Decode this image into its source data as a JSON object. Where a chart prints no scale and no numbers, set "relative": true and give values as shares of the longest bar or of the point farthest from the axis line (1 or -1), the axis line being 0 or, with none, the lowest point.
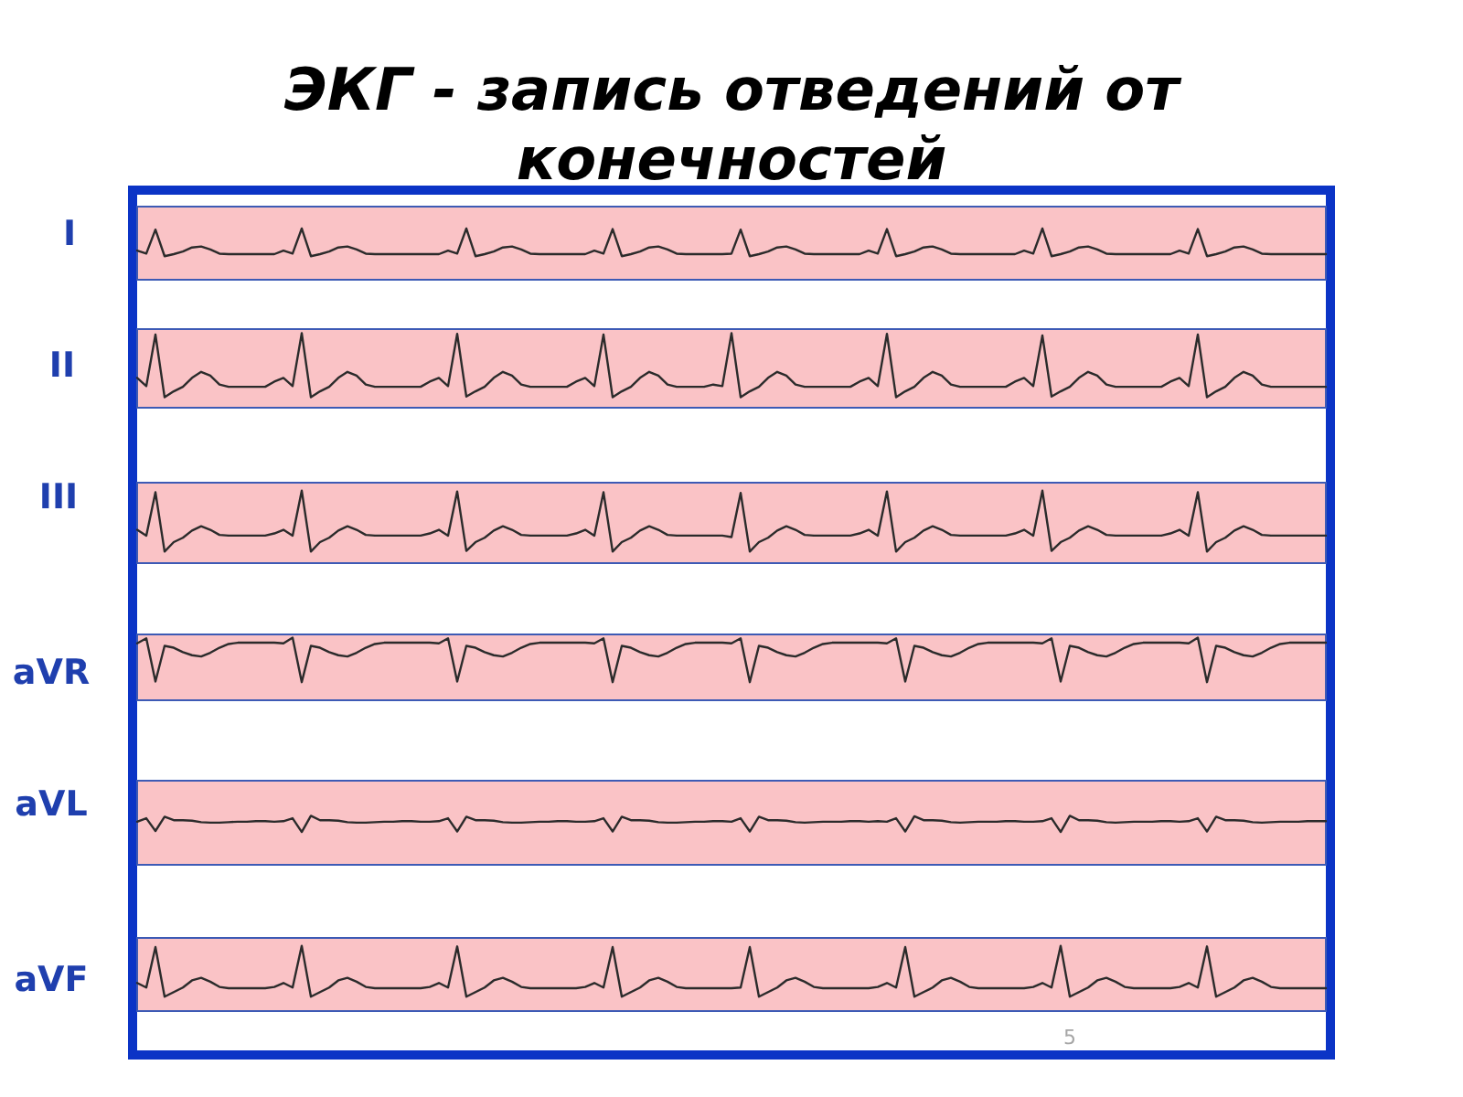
{
  "chart_data": [
    {
      "type": "line",
      "relative": true,
      "title": "ЭКГ - запись отведений от конечностей",
      "ylabel": "I",
      "color": "#2b2b2b",
      "categories": [
        null,
        null,
        null,
        null,
        null,
        null,
        null,
        null,
        null,
        null,
        null,
        null,
        null,
        null,
        null,
        null,
        null,
        null,
        null,
        null,
        null,
        null,
        null,
        null,
        null,
        null,
        null,
        null,
        null,
        null,
        null,
        null,
        null,
        null,
        null,
        null,
        null,
        null,
        null,
        null,
        null,
        null,
        null,
        null,
        null,
        null,
        null,
        null,
        null,
        null,
        null,
        null,
        null,
        null,
        null,
        null,
        null,
        null,
        null,
        null,
        null,
        null,
        null,
        null,
        null,
        null,
        null,
        null,
        null,
        null,
        null,
        null,
        null,
        null,
        null,
        null,
        null,
        null,
        null,
        null,
        null,
        null,
        null,
        null,
        null,
        null,
        null,
        null,
        null,
        null,
        null,
        null,
        null,
        null,
        null,
        null,
        null,
        null,
        null,
        null,
        null,
        null,
        null,
        null,
        null,
        null,
        null,
        null,
        null,
        null,
        null,
        null,
        null,
        null,
        null,
        null,
        null,
        null,
        null,
        null,
        null,
        null,
        null,
        null,
        null,
        null,
        null,
        null,
        null,
        null,
        null
      ],
      "values": [
        0.57,
        0.51,
        0.98,
        0.46,
        0.5,
        0.55,
        0.63,
        0.65,
        0.59,
        0.51,
        0.5,
        0.5,
        0.5,
        0.5,
        0.5,
        0.5,
        0.57,
        0.51,
        1,
        0.46,
        0.5,
        0.55,
        0.63,
        0.65,
        0.59,
        0.51,
        0.5,
        0.5,
        0.5,
        0.5,
        0.5,
        0.5,
        0.5,
        0.5,
        0.57,
        0.51,
        1,
        0.46,
        0.5,
        0.55,
        0.63,
        0.65,
        0.59,
        0.51,
        0.5,
        0.5,
        0.5,
        0.5,
        0.5,
        0.5,
        0.57,
        0.51,
        0.99,
        0.46,
        0.5,
        0.55,
        0.63,
        0.65,
        0.59,
        0.51,
        0.5,
        0.5,
        0.5,
        0.5,
        0.5,
        0.51,
        0.98,
        0.46,
        0.5,
        0.55,
        0.63,
        0.65,
        0.59,
        0.51,
        0.5,
        0.5,
        0.5,
        0.5,
        0.5,
        0.5,
        0.57,
        0.51,
        0.99,
        0.46,
        0.5,
        0.55,
        0.63,
        0.65,
        0.59,
        0.51,
        0.5,
        0.5,
        0.5,
        0.5,
        0.5,
        0.5,
        0.5,
        0.57,
        0.51,
        1,
        0.46,
        0.5,
        0.55,
        0.63,
        0.65,
        0.59,
        0.51,
        0.5,
        0.5,
        0.5,
        0.5,
        0.5,
        0.5,
        0.5,
        0.57,
        0.51,
        0.99,
        0.46,
        0.5,
        0.55,
        0.63,
        0.65,
        0.59,
        0.51,
        0.5,
        0.5,
        0.5,
        0.5,
        0.5,
        0.5,
        0.5
      ]
    },
    {
      "type": "line",
      "relative": true,
      "ylabel": "II",
      "color": "#2b2b2b",
      "categories": [
        null,
        null,
        null,
        null,
        null,
        null,
        null,
        null,
        null,
        null,
        null,
        null,
        null,
        null,
        null,
        null,
        null,
        null,
        null,
        null,
        null,
        null,
        null,
        null,
        null,
        null,
        null,
        null,
        null,
        null,
        null,
        null,
        null,
        null,
        null,
        null,
        null,
        null,
        null,
        null,
        null,
        null,
        null,
        null,
        null,
        null,
        null,
        null,
        null,
        null,
        null,
        null,
        null,
        null,
        null,
        null,
        null,
        null,
        null,
        null,
        null,
        null,
        null,
        null,
        null,
        null,
        null,
        null,
        null,
        null,
        null,
        null,
        null,
        null,
        null,
        null,
        null,
        null,
        null,
        null,
        null,
        null,
        null,
        null,
        null,
        null,
        null,
        null,
        null,
        null,
        null,
        null,
        null,
        null,
        null,
        null,
        null,
        null,
        null,
        null,
        null,
        null,
        null,
        null,
        null,
        null,
        null,
        null,
        null,
        null,
        null,
        null,
        null,
        null,
        null,
        null,
        null,
        null,
        null,
        null,
        null,
        null,
        null,
        null,
        null,
        null,
        null,
        null,
        null,
        null,
        null
      ],
      "values": [
        0.4,
        0.29,
        0.98,
        0.14,
        0.22,
        0.28,
        0.4,
        0.48,
        0.43,
        0.31,
        0.28,
        0.28,
        0.28,
        0.28,
        0.28,
        0.35,
        0.4,
        0.29,
        1,
        0.14,
        0.22,
        0.28,
        0.4,
        0.48,
        0.43,
        0.31,
        0.28,
        0.28,
        0.28,
        0.28,
        0.28,
        0.28,
        0.35,
        0.4,
        0.29,
        0.99,
        0.15,
        0.22,
        0.28,
        0.4,
        0.48,
        0.43,
        0.31,
        0.28,
        0.28,
        0.28,
        0.28,
        0.28,
        0.35,
        0.4,
        0.29,
        0.98,
        0.14,
        0.22,
        0.28,
        0.4,
        0.48,
        0.43,
        0.31,
        0.28,
        0.28,
        0.28,
        0.28,
        0.31,
        0.29,
        1,
        0.14,
        0.22,
        0.28,
        0.4,
        0.48,
        0.43,
        0.31,
        0.28,
        0.28,
        0.28,
        0.28,
        0.28,
        0.28,
        0.35,
        0.4,
        0.29,
        0.99,
        0.14,
        0.22,
        0.28,
        0.4,
        0.48,
        0.43,
        0.31,
        0.28,
        0.28,
        0.28,
        0.28,
        0.28,
        0.28,
        0.35,
        0.4,
        0.29,
        0.97,
        0.15,
        0.22,
        0.28,
        0.4,
        0.48,
        0.43,
        0.31,
        0.28,
        0.28,
        0.28,
        0.28,
        0.28,
        0.28,
        0.35,
        0.4,
        0.29,
        0.98,
        0.14,
        0.22,
        0.28,
        0.4,
        0.48,
        0.43,
        0.31,
        0.28,
        0.28,
        0.28,
        0.28,
        0.28,
        0.28,
        0.28
      ]
    },
    {
      "type": "line",
      "relative": true,
      "ylabel": "III",
      "color": "#2b2b2b",
      "categories": [
        null,
        null,
        null,
        null,
        null,
        null,
        null,
        null,
        null,
        null,
        null,
        null,
        null,
        null,
        null,
        null,
        null,
        null,
        null,
        null,
        null,
        null,
        null,
        null,
        null,
        null,
        null,
        null,
        null,
        null,
        null,
        null,
        null,
        null,
        null,
        null,
        null,
        null,
        null,
        null,
        null,
        null,
        null,
        null,
        null,
        null,
        null,
        null,
        null,
        null,
        null,
        null,
        null,
        null,
        null,
        null,
        null,
        null,
        null,
        null,
        null,
        null,
        null,
        null,
        null,
        null,
        null,
        null,
        null,
        null,
        null,
        null,
        null,
        null,
        null,
        null,
        null,
        null,
        null,
        null,
        null,
        null,
        null,
        null,
        null,
        null,
        null,
        null,
        null,
        null,
        null,
        null,
        null,
        null,
        null,
        null,
        null,
        null,
        null,
        null,
        null,
        null,
        null,
        null,
        null,
        null,
        null,
        null,
        null,
        null,
        null,
        null,
        null,
        null,
        null,
        null,
        null,
        null,
        null,
        null,
        null,
        null,
        null,
        null,
        null,
        null,
        null,
        null,
        null,
        null,
        null
      ],
      "values": [
        0.46,
        0.38,
        0.98,
        0.16,
        0.29,
        0.35,
        0.45,
        0.51,
        0.46,
        0.39,
        0.38,
        0.38,
        0.38,
        0.38,
        0.38,
        0.41,
        0.46,
        0.38,
        1,
        0.16,
        0.29,
        0.35,
        0.45,
        0.51,
        0.46,
        0.39,
        0.38,
        0.38,
        0.38,
        0.38,
        0.38,
        0.38,
        0.41,
        0.46,
        0.38,
        0.99,
        0.17,
        0.29,
        0.35,
        0.45,
        0.51,
        0.46,
        0.39,
        0.38,
        0.38,
        0.38,
        0.38,
        0.38,
        0.41,
        0.46,
        0.38,
        0.98,
        0.16,
        0.29,
        0.35,
        0.45,
        0.51,
        0.46,
        0.39,
        0.38,
        0.38,
        0.38,
        0.38,
        0.38,
        0.38,
        0.36,
        0.97,
        0.16,
        0.29,
        0.35,
        0.45,
        0.51,
        0.46,
        0.39,
        0.38,
        0.38,
        0.38,
        0.38,
        0.38,
        0.41,
        0.46,
        0.38,
        0.99,
        0.16,
        0.29,
        0.35,
        0.45,
        0.51,
        0.46,
        0.39,
        0.38,
        0.38,
        0.38,
        0.38,
        0.38,
        0.38,
        0.41,
        0.46,
        0.38,
        1,
        0.17,
        0.29,
        0.35,
        0.45,
        0.51,
        0.46,
        0.39,
        0.38,
        0.38,
        0.38,
        0.38,
        0.38,
        0.38,
        0.41,
        0.46,
        0.38,
        0.98,
        0.16,
        0.29,
        0.35,
        0.45,
        0.51,
        0.46,
        0.39,
        0.38,
        0.38,
        0.38,
        0.38,
        0.38,
        0.38,
        0.38
      ]
    },
    {
      "type": "line",
      "relative": true,
      "ylabel": "aVR",
      "color": "#2b2b2b",
      "categories": [
        null,
        null,
        null,
        null,
        null,
        null,
        null,
        null,
        null,
        null,
        null,
        null,
        null,
        null,
        null,
        null,
        null,
        null,
        null,
        null,
        null,
        null,
        null,
        null,
        null,
        null,
        null,
        null,
        null,
        null,
        null,
        null,
        null,
        null,
        null,
        null,
        null,
        null,
        null,
        null,
        null,
        null,
        null,
        null,
        null,
        null,
        null,
        null,
        null,
        null,
        null,
        null,
        null,
        null,
        null,
        null,
        null,
        null,
        null,
        null,
        null,
        null,
        null,
        null,
        null,
        null,
        null,
        null,
        null,
        null,
        null,
        null,
        null,
        null,
        null,
        null,
        null,
        null,
        null,
        null,
        null,
        null,
        null,
        null,
        null,
        null,
        null,
        null,
        null,
        null,
        null,
        null,
        null,
        null,
        null,
        null,
        null,
        null,
        null,
        null,
        null,
        null,
        null,
        null,
        null,
        null,
        null,
        null,
        null,
        null,
        null,
        null,
        null,
        null,
        null,
        null,
        null,
        null,
        null,
        null,
        null,
        null,
        null,
        null,
        null,
        null,
        null,
        null,
        null,
        null,
        null
      ],
      "values": [
        0.91,
        0.99,
        0.3,
        0.87,
        0.84,
        0.77,
        0.72,
        0.7,
        0.76,
        0.84,
        0.9,
        0.92,
        0.92,
        0.92,
        0.92,
        0.92,
        0.91,
        1,
        0.29,
        0.87,
        0.84,
        0.77,
        0.72,
        0.7,
        0.76,
        0.84,
        0.9,
        0.92,
        0.92,
        0.92,
        0.92,
        0.92,
        0.92,
        0.91,
        0.99,
        0.3,
        0.87,
        0.84,
        0.77,
        0.72,
        0.7,
        0.76,
        0.84,
        0.9,
        0.92,
        0.92,
        0.92,
        0.92,
        0.92,
        0.92,
        0.91,
        0.99,
        0.29,
        0.87,
        0.84,
        0.77,
        0.72,
        0.7,
        0.76,
        0.84,
        0.9,
        0.92,
        0.92,
        0.92,
        0.92,
        0.91,
        0.99,
        0.29,
        0.87,
        0.84,
        0.77,
        0.72,
        0.7,
        0.76,
        0.84,
        0.9,
        0.92,
        0.92,
        0.92,
        0.92,
        0.92,
        0.92,
        0.91,
        0.99,
        0.3,
        0.87,
        0.84,
        0.77,
        0.72,
        0.7,
        0.76,
        0.84,
        0.9,
        0.92,
        0.92,
        0.92,
        0.92,
        0.92,
        0.92,
        0.91,
        0.99,
        0.3,
        0.87,
        0.84,
        0.77,
        0.72,
        0.7,
        0.76,
        0.84,
        0.9,
        0.92,
        0.92,
        0.92,
        0.92,
        0.92,
        0.91,
        1,
        0.29,
        0.87,
        0.84,
        0.77,
        0.72,
        0.7,
        0.76,
        0.84,
        0.9,
        0.92,
        0.92,
        0.92,
        0.92,
        0.92
      ]
    },
    {
      "type": "line",
      "relative": true,
      "ylabel": "aVL",
      "color": "#2b2b2b",
      "categories": [
        null,
        null,
        null,
        null,
        null,
        null,
        null,
        null,
        null,
        null,
        null,
        null,
        null,
        null,
        null,
        null,
        null,
        null,
        null,
        null,
        null,
        null,
        null,
        null,
        null,
        null,
        null,
        null,
        null,
        null,
        null,
        null,
        null,
        null,
        null,
        null,
        null,
        null,
        null,
        null,
        null,
        null,
        null,
        null,
        null,
        null,
        null,
        null,
        null,
        null,
        null,
        null,
        null,
        null,
        null,
        null,
        null,
        null,
        null,
        null,
        null,
        null,
        null,
        null,
        null,
        null,
        null,
        null,
        null,
        null,
        null,
        null,
        null,
        null,
        null,
        null,
        null,
        null,
        null,
        null,
        null,
        null,
        null,
        null,
        null,
        null,
        null,
        null,
        null,
        null,
        null,
        null,
        null,
        null,
        null,
        null,
        null,
        null,
        null,
        null,
        null,
        null,
        null,
        null,
        null,
        null,
        null,
        null,
        null,
        null,
        null,
        null,
        null,
        null,
        null,
        null,
        null,
        null,
        null,
        null,
        null,
        null,
        null,
        null,
        null,
        null,
        null,
        null,
        null,
        null,
        null
      ],
      "values": [
        0.88,
        0.95,
        0.69,
        0.98,
        0.91,
        0.91,
        0.9,
        0.87,
        0.86,
        0.86,
        0.87,
        0.88,
        0.88,
        0.89,
        0.89,
        0.88,
        0.89,
        0.95,
        0.67,
        1,
        0.91,
        0.91,
        0.9,
        0.87,
        0.86,
        0.86,
        0.87,
        0.88,
        0.88,
        0.89,
        0.89,
        0.88,
        0.88,
        0.89,
        0.95,
        0.68,
        0.98,
        0.91,
        0.91,
        0.9,
        0.87,
        0.86,
        0.86,
        0.87,
        0.88,
        0.88,
        0.89,
        0.89,
        0.88,
        0.88,
        0.89,
        0.95,
        0.68,
        0.98,
        0.91,
        0.91,
        0.9,
        0.87,
        0.86,
        0.86,
        0.87,
        0.88,
        0.88,
        0.89,
        0.89,
        0.88,
        0.95,
        0.68,
        0.98,
        0.91,
        0.91,
        0.9,
        0.87,
        0.86,
        0.87,
        0.88,
        0.88,
        0.88,
        0.89,
        0.89,
        0.88,
        0.89,
        0.88,
        0.95,
        0.68,
        0.99,
        0.91,
        0.91,
        0.9,
        0.87,
        0.86,
        0.87,
        0.88,
        0.88,
        0.88,
        0.89,
        0.89,
        0.88,
        0.88,
        0.89,
        0.95,
        0.67,
        1,
        0.91,
        0.91,
        0.9,
        0.87,
        0.86,
        0.87,
        0.88,
        0.88,
        0.88,
        0.89,
        0.89,
        0.88,
        0.89,
        0.95,
        0.68,
        0.98,
        0.91,
        0.91,
        0.9,
        0.87,
        0.86,
        0.87,
        0.88,
        0.88,
        0.88,
        0.89,
        0.89,
        0.89
      ]
    },
    {
      "type": "line",
      "relative": true,
      "ylabel": "aVF",
      "annotations": [
        "5"
      ],
      "color": "#2b2b2b",
      "categories": [
        null,
        null,
        null,
        null,
        null,
        null,
        null,
        null,
        null,
        null,
        null,
        null,
        null,
        null,
        null,
        null,
        null,
        null,
        null,
        null,
        null,
        null,
        null,
        null,
        null,
        null,
        null,
        null,
        null,
        null,
        null,
        null,
        null,
        null,
        null,
        null,
        null,
        null,
        null,
        null,
        null,
        null,
        null,
        null,
        null,
        null,
        null,
        null,
        null,
        null,
        null,
        null,
        null,
        null,
        null,
        null,
        null,
        null,
        null,
        null,
        null,
        null,
        null,
        null,
        null,
        null,
        null,
        null,
        null,
        null,
        null,
        null,
        null,
        null,
        null,
        null,
        null,
        null,
        null,
        null,
        null,
        null,
        null,
        null,
        null,
        null,
        null,
        null,
        null,
        null,
        null,
        null,
        null,
        null,
        null,
        null,
        null,
        null,
        null,
        null,
        null,
        null,
        null,
        null,
        null,
        null,
        null,
        null,
        null,
        null,
        null,
        null,
        null,
        null,
        null,
        null,
        null,
        null,
        null,
        null,
        null,
        null,
        null,
        null,
        null,
        null,
        null,
        null,
        null,
        null,
        null
      ],
      "values": [
        0.43,
        0.36,
        0.98,
        0.22,
        0.29,
        0.36,
        0.47,
        0.51,
        0.45,
        0.37,
        0.35,
        0.35,
        0.35,
        0.35,
        0.35,
        0.37,
        0.43,
        0.36,
        1,
        0.22,
        0.29,
        0.36,
        0.47,
        0.51,
        0.45,
        0.37,
        0.35,
        0.35,
        0.35,
        0.35,
        0.35,
        0.35,
        0.37,
        0.43,
        0.36,
        0.99,
        0.22,
        0.29,
        0.36,
        0.47,
        0.51,
        0.45,
        0.37,
        0.35,
        0.35,
        0.35,
        0.35,
        0.35,
        0.35,
        0.37,
        0.43,
        0.36,
        0.98,
        0.22,
        0.29,
        0.36,
        0.47,
        0.51,
        0.45,
        0.37,
        0.35,
        0.35,
        0.35,
        0.35,
        0.35,
        0.35,
        0.36,
        0.98,
        0.22,
        0.29,
        0.36,
        0.47,
        0.51,
        0.45,
        0.37,
        0.35,
        0.35,
        0.35,
        0.35,
        0.35,
        0.35,
        0.37,
        0.43,
        0.36,
        0.98,
        0.22,
        0.29,
        0.36,
        0.47,
        0.51,
        0.45,
        0.37,
        0.35,
        0.35,
        0.35,
        0.35,
        0.35,
        0.35,
        0.37,
        0.43,
        0.36,
        1,
        0.22,
        0.29,
        0.36,
        0.47,
        0.51,
        0.45,
        0.37,
        0.35,
        0.35,
        0.35,
        0.35,
        0.35,
        0.37,
        0.43,
        0.36,
        0.99,
        0.22,
        0.29,
        0.36,
        0.47,
        0.51,
        0.45,
        0.37,
        0.35,
        0.35,
        0.35,
        0.35,
        0.35,
        0.35
      ]
    }
  ]
}
